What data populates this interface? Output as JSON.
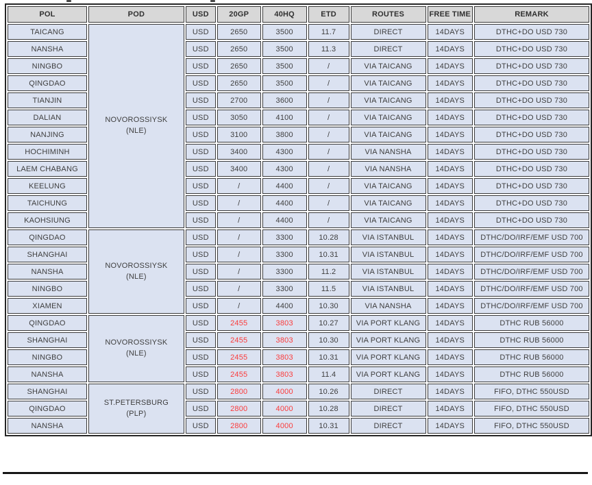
{
  "colors": {
    "row_bg": "#dbe2f1",
    "header_bg": "#d8d8d8",
    "border": "#3a3a3a",
    "outer_border": "#262626",
    "text": "#3e3e3e",
    "rate_red": "#fb3b3b"
  },
  "table": {
    "columns": [
      "POL",
      "POD",
      "USD",
      "20GP",
      "40HQ",
      "ETD",
      "ROUTES",
      "FREE TIME",
      "REMARK"
    ],
    "groups": [
      {
        "pod_line1": "NOVOROSSIYSK",
        "pod_line2": "(NLE)",
        "rate_red": false,
        "rows": [
          {
            "pol": "TAICANG",
            "usd": "USD",
            "gp20": "2650",
            "hq40": "3500",
            "etd": "11.7",
            "route": "DIRECT",
            "free_time": "14DAYS",
            "remark": "DTHC+DO USD 730"
          },
          {
            "pol": "NANSHA",
            "usd": "USD",
            "gp20": "2650",
            "hq40": "3500",
            "etd": "11.3",
            "route": "DIRECT",
            "free_time": "14DAYS",
            "remark": "DTHC+DO USD 730"
          },
          {
            "pol": "NINGBO",
            "usd": "USD",
            "gp20": "2650",
            "hq40": "3500",
            "etd": "/",
            "route": "VIA TAICANG",
            "free_time": "14DAYS",
            "remark": "DTHC+DO USD 730"
          },
          {
            "pol": "QINGDAO",
            "usd": "USD",
            "gp20": "2650",
            "hq40": "3500",
            "etd": "/",
            "route": "VIA TAICANG",
            "free_time": "14DAYS",
            "remark": "DTHC+DO USD 730"
          },
          {
            "pol": "TIANJIN",
            "usd": "USD",
            "gp20": "2700",
            "hq40": "3600",
            "etd": "/",
            "route": "VIA TAICANG",
            "free_time": "14DAYS",
            "remark": "DTHC+DO USD 730"
          },
          {
            "pol": "DALIAN",
            "usd": "USD",
            "gp20": "3050",
            "hq40": "4100",
            "etd": "/",
            "route": "VIA TAICANG",
            "free_time": "14DAYS",
            "remark": "DTHC+DO USD 730"
          },
          {
            "pol": "NANJING",
            "usd": "USD",
            "gp20": "3100",
            "hq40": "3800",
            "etd": "/",
            "route": "VIA TAICANG",
            "free_time": "14DAYS",
            "remark": "DTHC+DO USD 730"
          },
          {
            "pol": "HOCHIMINH",
            "usd": "USD",
            "gp20": "3400",
            "hq40": "4300",
            "etd": "/",
            "route": "VIA NANSHA",
            "free_time": "14DAYS",
            "remark": "DTHC+DO USD 730"
          },
          {
            "pol": "LAEM CHABANG",
            "usd": "USD",
            "gp20": "3400",
            "hq40": "4300",
            "etd": "/",
            "route": "VIA NANSHA",
            "free_time": "14DAYS",
            "remark": "DTHC+DO USD 730"
          },
          {
            "pol": "KEELUNG",
            "usd": "USD",
            "gp20": "/",
            "hq40": "4400",
            "etd": "/",
            "route": "VIA TAICANG",
            "free_time": "14DAYS",
            "remark": "DTHC+DO USD 730"
          },
          {
            "pol": "TAICHUNG",
            "usd": "USD",
            "gp20": "/",
            "hq40": "4400",
            "etd": "/",
            "route": "VIA TAICANG",
            "free_time": "14DAYS",
            "remark": "DTHC+DO USD 730"
          },
          {
            "pol": "KAOHSIUNG",
            "usd": "USD",
            "gp20": "/",
            "hq40": "4400",
            "etd": "/",
            "route": "VIA TAICANG",
            "free_time": "14DAYS",
            "remark": "DTHC+DO USD 730"
          }
        ]
      },
      {
        "pod_line1": "NOVOROSSIYSK",
        "pod_line2": "(NLE)",
        "rate_red": false,
        "rows": [
          {
            "pol": "QINGDAO",
            "usd": "USD",
            "gp20": "/",
            "hq40": "3300",
            "etd": "10.28",
            "route": "VIA ISTANBUL",
            "free_time": "14DAYS",
            "remark": "DTHC/DO/IRF/EMF USD 700"
          },
          {
            "pol": "SHANGHAI",
            "usd": "USD",
            "gp20": "/",
            "hq40": "3300",
            "etd": "10.31",
            "route": "VIA ISTANBUL",
            "free_time": "14DAYS",
            "remark": "DTHC/DO/IRF/EMF USD 700"
          },
          {
            "pol": "NANSHA",
            "usd": "USD",
            "gp20": "/",
            "hq40": "3300",
            "etd": "11.2",
            "route": "VIA ISTANBUL",
            "free_time": "14DAYS",
            "remark": "DTHC/DO/IRF/EMF USD 700"
          },
          {
            "pol": "NINGBO",
            "usd": "USD",
            "gp20": "/",
            "hq40": "3300",
            "etd": "11.5",
            "route": "VIA ISTANBUL",
            "free_time": "14DAYS",
            "remark": "DTHC/DO/IRF/EMF USD 700"
          },
          {
            "pol": "XIAMEN",
            "usd": "USD",
            "gp20": "/",
            "hq40": "4400",
            "etd": "10.30",
            "route": "VIA NANSHA",
            "free_time": "14DAYS",
            "remark": "DTHC/DO/IRF/EMF USD 700"
          }
        ]
      },
      {
        "pod_line1": "NOVOROSSIYSK",
        "pod_line2": "(NLE)",
        "rate_red": true,
        "rows": [
          {
            "pol": "QINGDAO",
            "usd": "USD",
            "gp20": "2455",
            "hq40": "3803",
            "etd": "10.27",
            "route": "VIA PORT KLANG",
            "free_time": "14DAYS",
            "remark": "DTHC RUB  56000"
          },
          {
            "pol": "SHANGHAI",
            "usd": "USD",
            "gp20": "2455",
            "hq40": "3803",
            "etd": "10.30",
            "route": "VIA PORT KLANG",
            "free_time": "14DAYS",
            "remark": "DTHC RUB  56000"
          },
          {
            "pol": "NINGBO",
            "usd": "USD",
            "gp20": "2455",
            "hq40": "3803",
            "etd": "10.31",
            "route": "VIA PORT KLANG",
            "free_time": "14DAYS",
            "remark": "DTHC RUB  56000"
          },
          {
            "pol": "NANSHA",
            "usd": "USD",
            "gp20": "2455",
            "hq40": "3803",
            "etd": "11.4",
            "route": "VIA PORT KLANG",
            "free_time": "14DAYS",
            "remark": "DTHC RUB  56000"
          }
        ]
      },
      {
        "pod_line1": "ST.PETERSBURG",
        "pod_line2": "(PLP)",
        "rate_red": true,
        "rows": [
          {
            "pol": "SHANGHAI",
            "usd": "USD",
            "gp20": "2800",
            "hq40": "4000",
            "etd": "10.26",
            "route": "DIRECT",
            "free_time": "14DAYS",
            "remark": "FIFO, DTHC 550USD"
          },
          {
            "pol": "QINGDAO",
            "usd": "USD",
            "gp20": "2800",
            "hq40": "4000",
            "etd": "10.28",
            "route": "DIRECT",
            "free_time": "14DAYS",
            "remark": "FIFO, DTHC 550USD"
          },
          {
            "pol": "NANSHA",
            "usd": "USD",
            "gp20": "2800",
            "hq40": "4000",
            "etd": "10.31",
            "route": "DIRECT",
            "free_time": "14DAYS",
            "remark": "FIFO, DTHC 550USD"
          }
        ]
      }
    ]
  }
}
